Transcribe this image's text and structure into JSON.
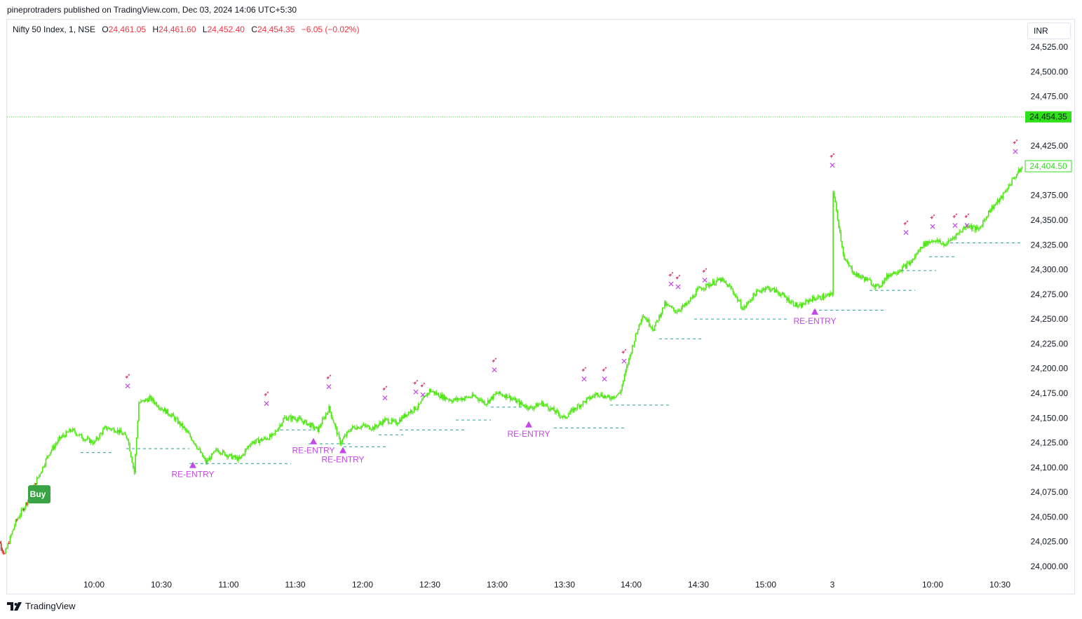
{
  "header": {
    "publisher_line": "pineprotraders published on TradingView.com, Dec 03, 2024 14:06 UTC+5:30"
  },
  "legend": {
    "symbol": "Nifty 50 Index, 1, NSE",
    "open_label": "O",
    "open_value": "24,461.05",
    "high_label": "H",
    "high_value": "24,461.60",
    "low_label": "L",
    "low_value": "24,452.40",
    "close_label": "C",
    "close_value": "24,454.35",
    "change": "−6.05 (−0.02%)"
  },
  "currency": "INR",
  "footer": {
    "brand": "TradingView"
  },
  "colors": {
    "bull": "#4ce60f",
    "bear": "#e01b1b",
    "marker": "#c447e8",
    "rocket": "#d1124a",
    "support_line": "#26a69a",
    "last_price_bg": "#2fe01b",
    "buy_badge": "#3aa345",
    "down_text": "#f23645"
  },
  "chart_data": {
    "type": "candlestick",
    "y_axis": {
      "min": 24000,
      "max": 24525,
      "unit": "INR",
      "ticks": [
        "24,525.00",
        "24,500.00",
        "24,475.00",
        "24,425.00",
        "24,375.00",
        "24,350.00",
        "24,325.00",
        "24,300.00",
        "24,275.00",
        "24,250.00",
        "24,225.00",
        "24,200.00",
        "24,175.00",
        "24,150.00",
        "24,125.00",
        "24,100.00",
        "24,075.00",
        "24,050.00",
        "24,025.00",
        "24,000.00"
      ],
      "tick_values": [
        24525,
        24500,
        24475,
        24425,
        24375,
        24350,
        24325,
        24300,
        24275,
        24250,
        24225,
        24200,
        24175,
        24150,
        24125,
        24100,
        24075,
        24050,
        24025,
        24000
      ]
    },
    "x_axis": {
      "labels": [
        "10:00",
        "10:30",
        "11:00",
        "11:30",
        "12:00",
        "12:30",
        "13:00",
        "13:30",
        "14:00",
        "14:30",
        "15:00",
        "3",
        "10:00",
        "10:30"
      ]
    },
    "last_price": {
      "value": 24454.35,
      "label": "24,454.35"
    },
    "current_price": {
      "value": 24404.5,
      "label": "24,404.50"
    },
    "price_path": [
      [
        "09:15",
        24040
      ],
      [
        "09:20",
        24012
      ],
      [
        "09:25",
        24045
      ],
      [
        "09:30",
        24065
      ],
      [
        "09:35",
        24090
      ],
      [
        "09:40",
        24115
      ],
      [
        "09:45",
        24130
      ],
      [
        "09:50",
        24138
      ],
      [
        "09:55",
        24130
      ],
      [
        "10:00",
        24125
      ],
      [
        "10:05",
        24140
      ],
      [
        "10:10",
        24138
      ],
      [
        "10:15",
        24130
      ],
      [
        "10:18",
        24095
      ],
      [
        "10:20",
        24165
      ],
      [
        "10:25",
        24170
      ],
      [
        "10:30",
        24160
      ],
      [
        "10:35",
        24152
      ],
      [
        "10:40",
        24140
      ],
      [
        "10:45",
        24125
      ],
      [
        "10:50",
        24105
      ],
      [
        "10:55",
        24118
      ],
      [
        "11:00",
        24112
      ],
      [
        "11:05",
        24108
      ],
      [
        "11:10",
        24125
      ],
      [
        "11:15",
        24128
      ],
      [
        "11:20",
        24132
      ],
      [
        "11:25",
        24150
      ],
      [
        "11:30",
        24150
      ],
      [
        "11:35",
        24145
      ],
      [
        "11:40",
        24138
      ],
      [
        "11:45",
        24160
      ],
      [
        "11:50",
        24125
      ],
      [
        "11:55",
        24140
      ],
      [
        "12:00",
        24142
      ],
      [
        "12:05",
        24140
      ],
      [
        "12:10",
        24148
      ],
      [
        "12:15",
        24145
      ],
      [
        "12:20",
        24155
      ],
      [
        "12:25",
        24162
      ],
      [
        "12:30",
        24178
      ],
      [
        "12:35",
        24172
      ],
      [
        "12:40",
        24168
      ],
      [
        "12:45",
        24170
      ],
      [
        "12:50",
        24172
      ],
      [
        "12:55",
        24165
      ],
      [
        "13:00",
        24175
      ],
      [
        "13:05",
        24172
      ],
      [
        "13:10",
        24165
      ],
      [
        "13:15",
        24160
      ],
      [
        "13:20",
        24165
      ],
      [
        "13:25",
        24158
      ],
      [
        "13:30",
        24150
      ],
      [
        "13:35",
        24160
      ],
      [
        "13:40",
        24168
      ],
      [
        "13:45",
        24175
      ],
      [
        "13:50",
        24170
      ],
      [
        "13:55",
        24175
      ],
      [
        "14:00",
        24218
      ],
      [
        "14:05",
        24255
      ],
      [
        "14:10",
        24240
      ],
      [
        "14:15",
        24265
      ],
      [
        "14:20",
        24258
      ],
      [
        "14:25",
        24265
      ],
      [
        "14:30",
        24280
      ],
      [
        "14:35",
        24285
      ],
      [
        "14:40",
        24290
      ],
      [
        "14:45",
        24280
      ],
      [
        "14:50",
        24260
      ],
      [
        "14:55",
        24275
      ],
      [
        "15:00",
        24282
      ],
      [
        "15:05",
        24278
      ],
      [
        "15:10",
        24270
      ],
      [
        "15:15",
        24262
      ],
      [
        "15:20",
        24270
      ],
      [
        "15:25",
        24272
      ],
      [
        "15:30",
        24275
      ],
      [
        "D2 09:15",
        24380
      ],
      [
        "D2 09:20",
        24310
      ],
      [
        "D2 09:25",
        24295
      ],
      [
        "D2 09:30",
        24290
      ],
      [
        "D2 09:35",
        24282
      ],
      [
        "D2 09:40",
        24295
      ],
      [
        "D2 09:45",
        24300
      ],
      [
        "D2 09:50",
        24308
      ],
      [
        "D2 09:55",
        24325
      ],
      [
        "D2 10:00",
        24330
      ],
      [
        "D2 10:05",
        24325
      ],
      [
        "D2 10:10",
        24335
      ],
      [
        "D2 10:15",
        24345
      ],
      [
        "D2 10:20",
        24340
      ],
      [
        "D2 10:25",
        24360
      ],
      [
        "D2 10:30",
        24372
      ],
      [
        "D2 10:35",
        24390
      ],
      [
        "D2 10:40",
        24405
      ]
    ],
    "signals": {
      "buy_label": "Buy",
      "reentry_label": "RE-ENTRY"
    }
  }
}
